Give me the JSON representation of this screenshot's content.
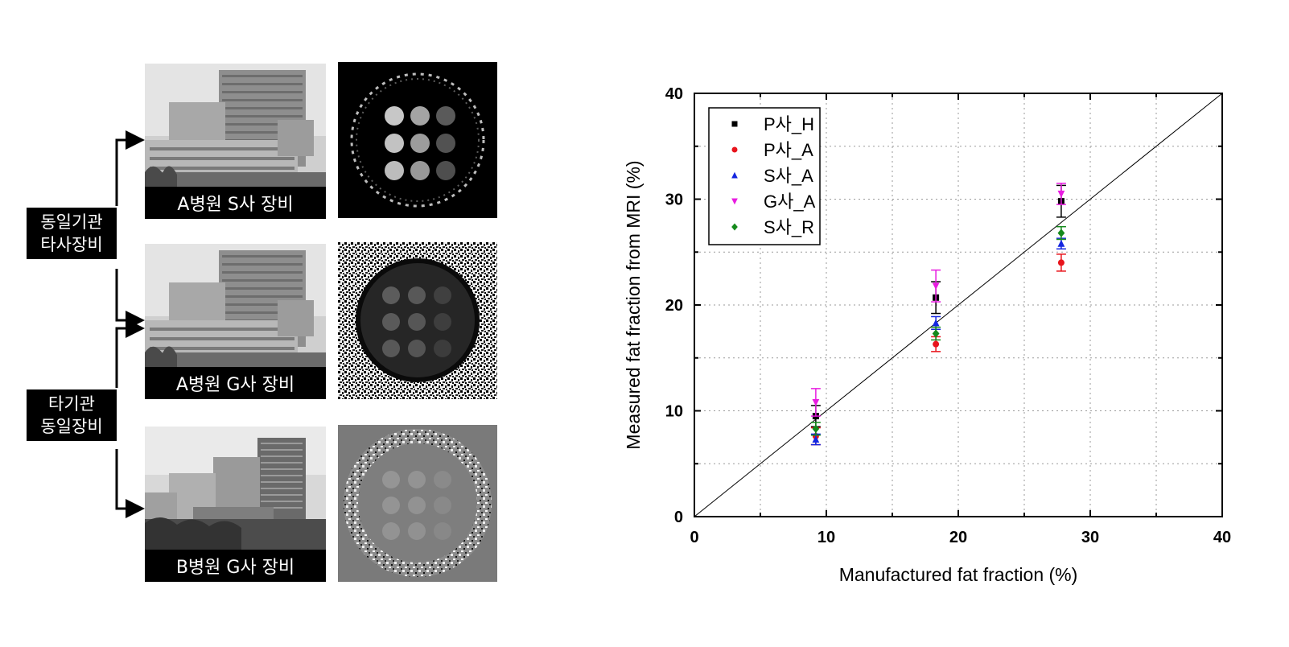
{
  "left_panel": {
    "captions": [
      "A병원 S사 장비",
      "A병원 G사 장비",
      "B병원 G사 장비"
    ],
    "group_labels": [
      {
        "line1": "동일기관",
        "line2": "타사장비"
      },
      {
        "line1": "타기관",
        "line2": "동일장비"
      }
    ]
  },
  "chart_data": {
    "type": "scatter",
    "xlabel": "Manufactured fat fraction (%)",
    "ylabel": "Measured fat fraction from MRI (%)",
    "xlim": [
      0,
      40
    ],
    "ylim": [
      0,
      40
    ],
    "xticks": [
      "0",
      "10",
      "20",
      "30",
      "40"
    ],
    "yticks": [
      "0",
      "10",
      "20",
      "30",
      "40"
    ],
    "grid": true,
    "legend_position": "top-left",
    "identity_line": true,
    "series": [
      {
        "name": "P사_H",
        "marker": "square",
        "color": "#000000",
        "points": [
          {
            "x": 9.2,
            "y": 9.5,
            "err": 1.0
          },
          {
            "x": 18.3,
            "y": 20.7,
            "err": 1.5
          },
          {
            "x": 27.8,
            "y": 29.8,
            "err": 1.5
          }
        ]
      },
      {
        "name": "P사_A",
        "marker": "circle",
        "color": "#e8141c",
        "points": [
          {
            "x": 9.2,
            "y": 7.6,
            "err": 0.8
          },
          {
            "x": 18.3,
            "y": 16.3,
            "err": 0.7
          },
          {
            "x": 27.8,
            "y": 24.0,
            "err": 0.8
          }
        ]
      },
      {
        "name": "S사_A",
        "marker": "triangle-up",
        "color": "#1426e0",
        "points": [
          {
            "x": 9.2,
            "y": 7.3,
            "err": 0.5
          },
          {
            "x": 18.3,
            "y": 18.3,
            "err": 0.6
          },
          {
            "x": 27.8,
            "y": 25.8,
            "err": 0.5
          }
        ]
      },
      {
        "name": "G사_A",
        "marker": "triangle-down",
        "color": "#e81ce0",
        "points": [
          {
            "x": 9.2,
            "y": 10.8,
            "err": 1.3
          },
          {
            "x": 18.3,
            "y": 21.8,
            "err": 1.5
          },
          {
            "x": 27.8,
            "y": 30.5,
            "err": 1.0
          }
        ]
      },
      {
        "name": "S사_R",
        "marker": "diamond",
        "color": "#158a1c",
        "points": [
          {
            "x": 9.2,
            "y": 8.3,
            "err": 0.6
          },
          {
            "x": 18.3,
            "y": 17.3,
            "err": 0.6
          },
          {
            "x": 27.8,
            "y": 26.8,
            "err": 0.6
          }
        ]
      }
    ]
  }
}
